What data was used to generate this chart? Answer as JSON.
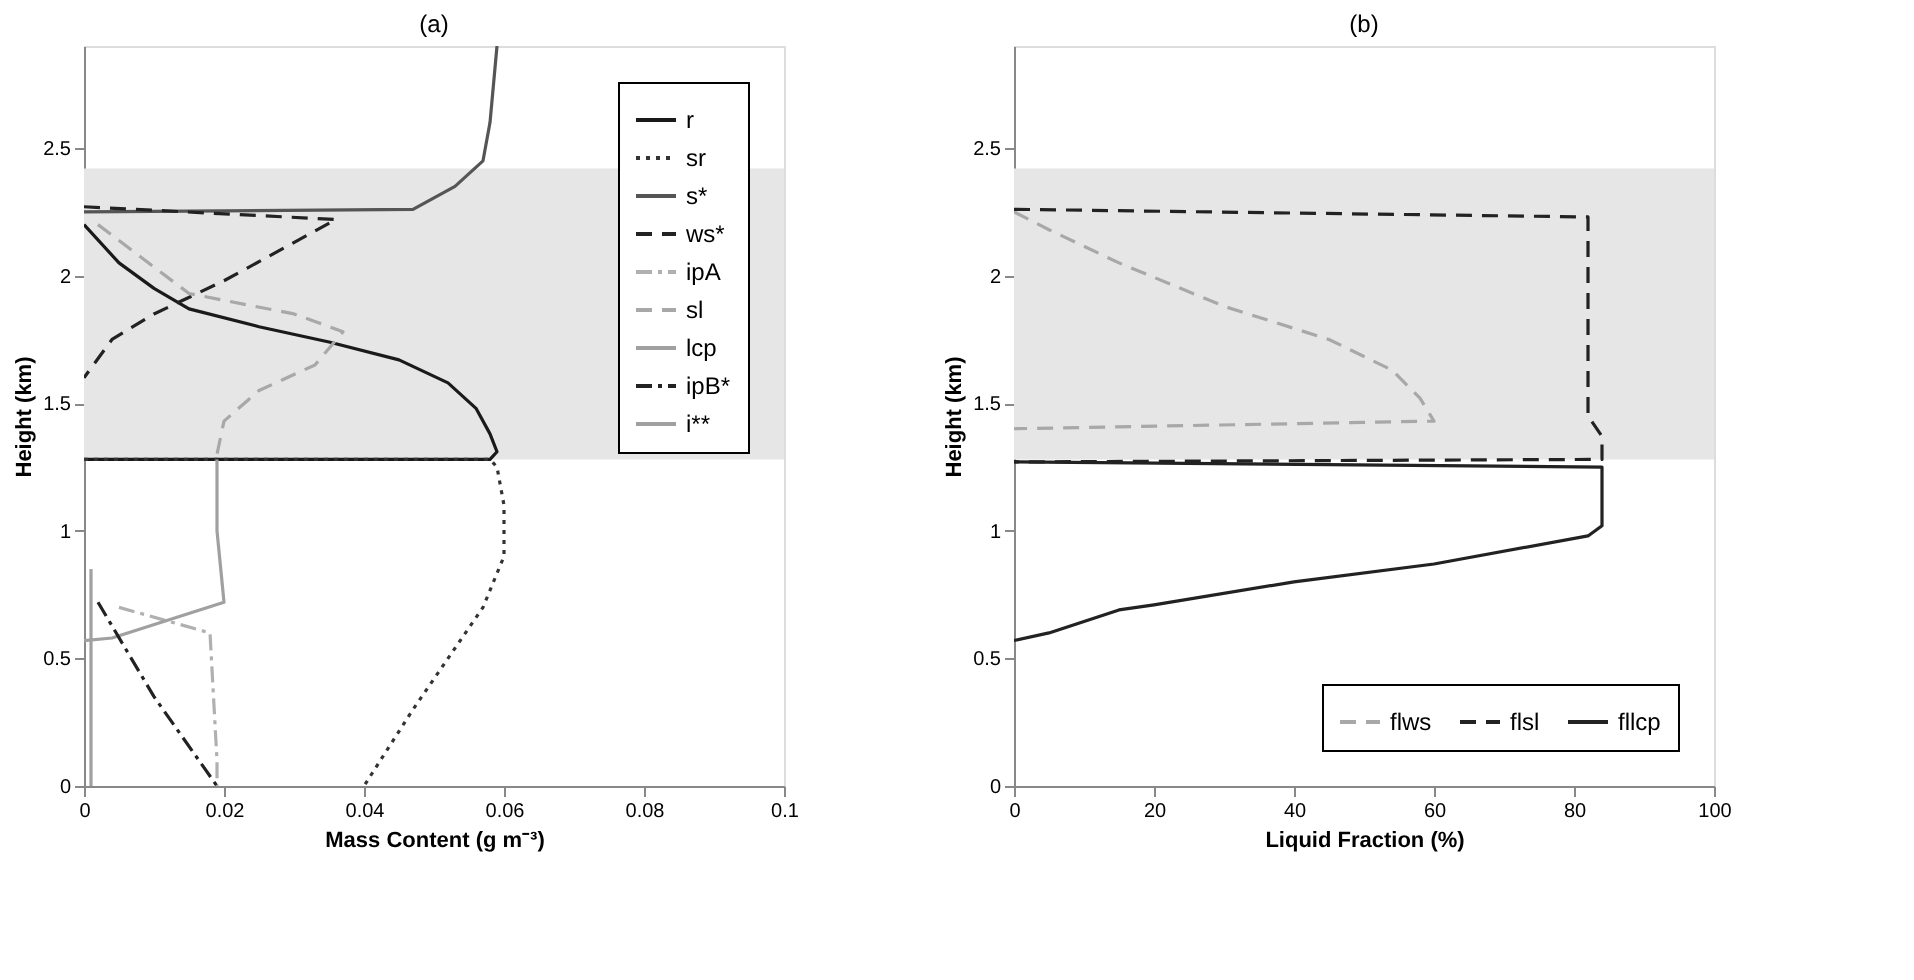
{
  "chart_data": [
    {
      "type": "line",
      "title": "(a)",
      "xlabel": "Mass Content (g m⁻³)",
      "ylabel": "Height (km)",
      "xlim": [
        0,
        0.1
      ],
      "ylim": [
        0,
        2.9
      ],
      "xticks": [
        0,
        0.02,
        0.04,
        0.06,
        0.08,
        0.1
      ],
      "yticks": [
        0,
        0.5,
        1,
        1.5,
        2,
        2.5
      ],
      "grid": false,
      "legend": "top right",
      "bands": [
        {
          "axis": "y",
          "from": 1.28,
          "to": 2.42,
          "color": "#e6e6e6"
        }
      ],
      "series": [
        {
          "name": "r",
          "color": "#1a1a1a",
          "line_style": "solid",
          "x": [
            0,
            0.005,
            0.01,
            0.015,
            0.025,
            0.035,
            0.045,
            0.052,
            0.056,
            0.058,
            0.059,
            0.058,
            0
          ],
          "values": [
            2.2,
            2.05,
            1.95,
            1.87,
            1.8,
            1.74,
            1.67,
            1.58,
            1.48,
            1.38,
            1.31,
            1.28,
            1.28
          ]
        },
        {
          "name": "sr",
          "color": "#333333",
          "line_style": "dotted",
          "x": [
            0,
            0.058,
            0.059,
            0.06,
            0.06,
            0.057,
            0.052,
            0.047,
            0.04
          ],
          "values": [
            1.28,
            1.28,
            1.25,
            1.1,
            0.9,
            0.7,
            0.5,
            0.3,
            0
          ]
        },
        {
          "name": "s*",
          "color": "#555555",
          "line_style": "solid",
          "x": [
            0.059,
            0.058,
            0.057,
            0.053,
            0.047,
            0
          ],
          "values": [
            2.9,
            2.6,
            2.45,
            2.35,
            2.26,
            2.25
          ]
        },
        {
          "name": "ws*",
          "color": "#222222",
          "line_style": "dashed",
          "x": [
            0,
            0.036,
            0.02,
            0.01,
            0.004,
            0
          ],
          "values": [
            2.27,
            2.22,
            1.98,
            1.85,
            1.75,
            1.6
          ]
        },
        {
          "name": "ipA",
          "color": "#b0b0b0",
          "line_style": "dashdot",
          "x": [
            0.005,
            0.018,
            0.019,
            0.019
          ],
          "values": [
            0.7,
            0.6,
            0.1,
            0
          ]
        },
        {
          "name": "sl",
          "color": "#a8a8a8",
          "line_style": "dashed",
          "x": [
            0.002,
            0.015,
            0.03,
            0.037,
            0.033,
            0.025,
            0.02,
            0.019
          ],
          "values": [
            2.2,
            1.93,
            1.85,
            1.78,
            1.65,
            1.55,
            1.43,
            1.3
          ]
        },
        {
          "name": "lcp",
          "color": "#a0a0a0",
          "line_style": "solid",
          "x": [
            0.019,
            0.019,
            0.02,
            0.004,
            0
          ],
          "values": [
            1.28,
            1.0,
            0.72,
            0.58,
            0.57
          ]
        },
        {
          "name": "ipB*",
          "color": "#222222",
          "line_style": "dashdot",
          "x": [
            0.002,
            0.01,
            0.019
          ],
          "values": [
            0.72,
            0.35,
            0
          ]
        },
        {
          "name": "i**",
          "color": "#a0a0a0",
          "line_style": "solid",
          "x": [
            0.001,
            0.001
          ],
          "values": [
            0.85,
            0
          ]
        }
      ]
    },
    {
      "type": "line",
      "title": "(b)",
      "xlabel": "Liquid Fraction (%)",
      "ylabel": "Height (km)",
      "xlim": [
        0,
        100
      ],
      "ylim": [
        0,
        2.9
      ],
      "xticks": [
        0,
        20,
        40,
        60,
        80,
        100
      ],
      "yticks": [
        0,
        0.5,
        1,
        1.5,
        2,
        2.5
      ],
      "grid": false,
      "legend": "bottom",
      "bands": [
        {
          "axis": "y",
          "from": 1.28,
          "to": 2.42,
          "color": "#e6e6e6"
        }
      ],
      "series": [
        {
          "name": "flws",
          "color": "#a8a8a8",
          "line_style": "dashed",
          "x": [
            0,
            5,
            15,
            30,
            45,
            54,
            58,
            60,
            0
          ],
          "values": [
            2.25,
            2.18,
            2.05,
            1.88,
            1.75,
            1.63,
            1.52,
            1.43,
            1.4
          ]
        },
        {
          "name": "flsl",
          "color": "#222222",
          "line_style": "dashed",
          "x": [
            0,
            82,
            82,
            84,
            84,
            0
          ],
          "values": [
            2.26,
            2.23,
            1.45,
            1.37,
            1.28,
            1.27
          ]
        },
        {
          "name": "fllcp",
          "color": "#222222",
          "line_style": "solid",
          "x": [
            0,
            84,
            84,
            82,
            60,
            40,
            20,
            15,
            5,
            0
          ],
          "values": [
            1.27,
            1.25,
            1.02,
            0.98,
            0.87,
            0.8,
            0.71,
            0.69,
            0.6,
            0.57
          ]
        }
      ]
    }
  ]
}
